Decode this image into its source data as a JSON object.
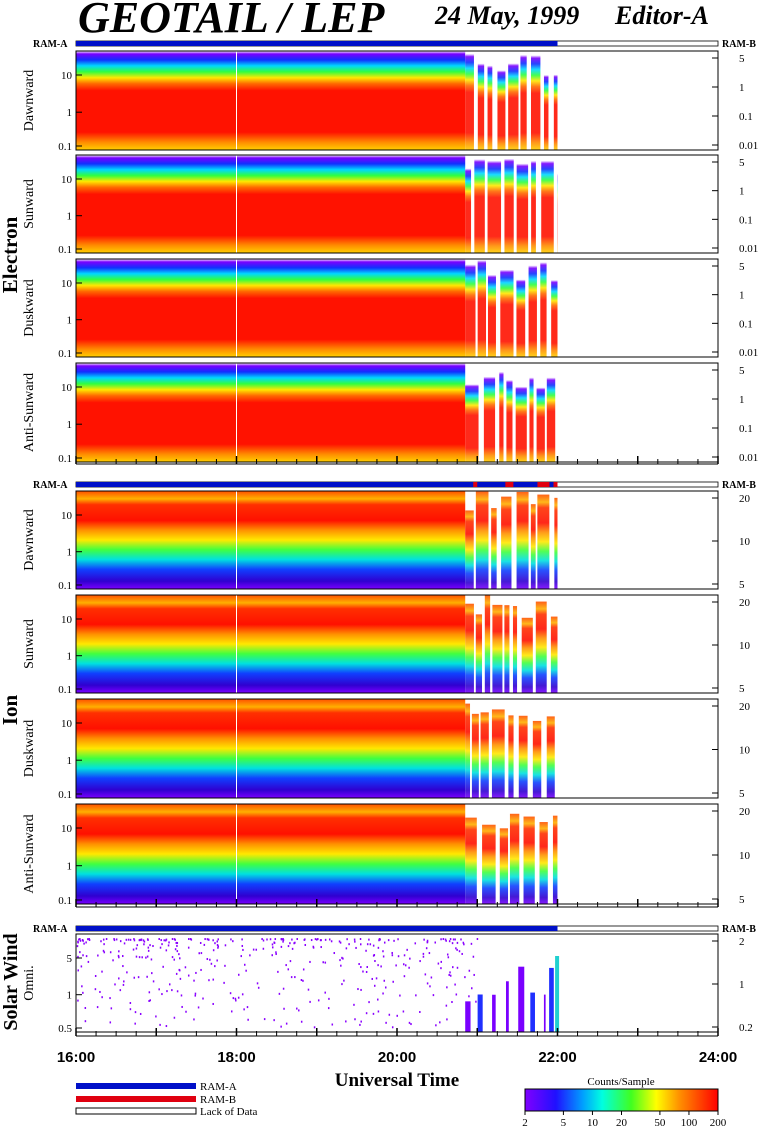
{
  "header": {
    "title": "GEOTAIL / LEP",
    "date": "24 May, 1999",
    "editor": "Editor-A"
  },
  "colors": {
    "ram_a": "#0010c8",
    "ram_b": "#e00010",
    "lack": "#ffffff"
  },
  "ram_labels": {
    "left": "RAM-A",
    "right": "RAM-B"
  },
  "chart_data": {
    "type": "heatmap",
    "xlabel": "Universal Time",
    "xlim": [
      16,
      24
    ],
    "xticks": [
      "16:00",
      "18:00",
      "20:00",
      "22:00",
      "24:00"
    ],
    "data_end_hour": 22.0,
    "groups": [
      {
        "name": "Electron",
        "panels": [
          {
            "label": "Dawnward",
            "yticks": [
              "10",
              "1",
              "0.1"
            ],
            "rticks": [
              "5",
              "1",
              "0.1",
              "0.01"
            ]
          },
          {
            "label": "Sunward",
            "yticks": [
              "10",
              "1",
              "0.1"
            ],
            "rticks": [
              "5",
              "1",
              "0.1",
              "0.01"
            ]
          },
          {
            "label": "Duskward",
            "yticks": [
              "10",
              "1",
              "0.1"
            ],
            "rticks": [
              "5",
              "1",
              "0.1",
              "0.01"
            ]
          },
          {
            "label": "Anti-Sunward",
            "yticks": [
              "10",
              "1",
              "0.1"
            ],
            "rticks": [
              "5",
              "1",
              "0.1",
              "0.01"
            ]
          }
        ]
      },
      {
        "name": "Ion",
        "panels": [
          {
            "label": "Dawnward",
            "yticks": [
              "10",
              "1",
              "0.1"
            ],
            "rticks": [
              "20",
              "10",
              "5"
            ]
          },
          {
            "label": "Sunward",
            "yticks": [
              "10",
              "1",
              "0.1"
            ],
            "rticks": [
              "20",
              "10",
              "5"
            ]
          },
          {
            "label": "Duskward",
            "yticks": [
              "10",
              "1",
              "0.1"
            ],
            "rticks": [
              "20",
              "10",
              "5"
            ]
          },
          {
            "label": "Anti-Sunward",
            "yticks": [
              "10",
              "1",
              "0.1"
            ],
            "rticks": [
              "20",
              "10",
              "5"
            ]
          }
        ]
      },
      {
        "name": "Solar Wind",
        "panels": [
          {
            "label": "Omni.",
            "yticks": [
              "5",
              "1",
              "0.5"
            ],
            "rticks": [
              "2",
              "1",
              "0.2"
            ]
          }
        ]
      }
    ],
    "legend": {
      "items": [
        "RAM-A",
        "RAM-B",
        "Lack of Data"
      ]
    },
    "colorbar": {
      "title": "Counts/Sample",
      "ticks": [
        "2",
        "5",
        "10",
        "20",
        "50",
        "100",
        "200"
      ],
      "scale": "log",
      "range": [
        2,
        200
      ]
    }
  }
}
